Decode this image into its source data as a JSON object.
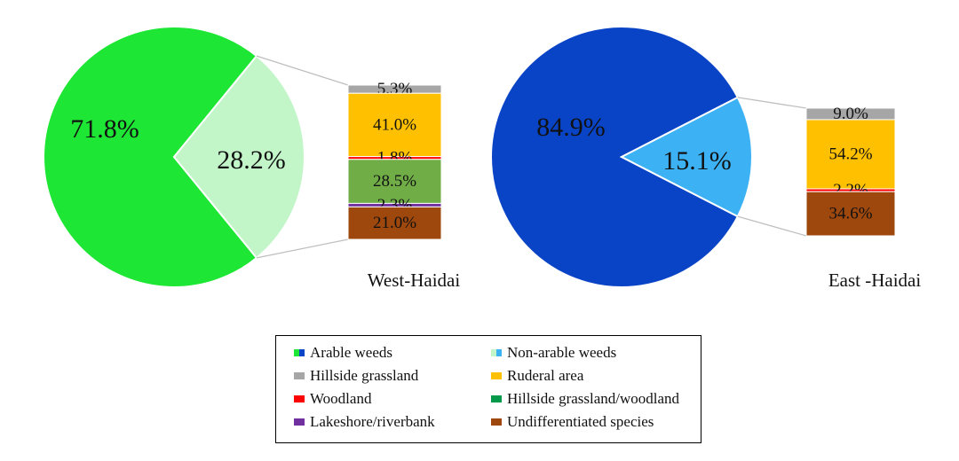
{
  "chart_data": [
    {
      "type": "pie",
      "name": "West-Haidai",
      "caption": "West-Haidai",
      "slices": [
        {
          "label": "71.8%",
          "value": 71.8,
          "category": "Arable weeds",
          "color": "#1ee634"
        },
        {
          "label": "28.2%",
          "value": 28.2,
          "category": "Non-arable weeds",
          "color": "#c2f5c8"
        }
      ],
      "breakdown": [
        {
          "label": "5.3%",
          "value": 5.3,
          "category": "Hillside grassland",
          "color": "#a6a6a6"
        },
        {
          "label": "41.0%",
          "value": 41.0,
          "category": "Ruderal area",
          "color": "#ffc000"
        },
        {
          "label": "1.8%",
          "value": 1.8,
          "category": "Woodland",
          "color": "#ff0000"
        },
        {
          "label": "28.5%",
          "value": 28.5,
          "category": "Hillside grassland/woodland",
          "color": "#70ad47"
        },
        {
          "label": "2.3%",
          "value": 2.3,
          "category": "Lakeshore/riverbank",
          "color": "#7030a0"
        },
        {
          "label": "21.0%",
          "value": 21.0,
          "category": "Undifferentiated species",
          "color": "#9e480e"
        }
      ]
    },
    {
      "type": "pie",
      "name": "East -Haidai",
      "caption": "East -Haidai",
      "slices": [
        {
          "label": "84.9%",
          "value": 84.9,
          "category": "Arable weeds",
          "color": "#0a44c6"
        },
        {
          "label": "15.1%",
          "value": 15.1,
          "category": "Non-arable weeds",
          "color": "#3cb2f5"
        }
      ],
      "breakdown": [
        {
          "label": "9.0%",
          "value": 9.0,
          "category": "Hillside grassland",
          "color": "#a6a6a6"
        },
        {
          "label": "54.2%",
          "value": 54.2,
          "category": "Ruderal area",
          "color": "#ffc000"
        },
        {
          "label": "2.2%",
          "value": 2.2,
          "category": "Woodland",
          "color": "#ff0000"
        },
        {
          "label": "34.6%",
          "value": 34.6,
          "category": "Undifferentiated species",
          "color": "#9e480e"
        }
      ]
    }
  ],
  "legend": {
    "items": [
      {
        "label": "Arable weeds",
        "colors": [
          "#1ee634",
          "#0a44c6"
        ]
      },
      {
        "label": "Non-arable weeds",
        "colors": [
          "#c2f5c8",
          "#3cb2f5"
        ]
      },
      {
        "label": "Hillside grassland",
        "colors": [
          "#a6a6a6"
        ]
      },
      {
        "label": "Ruderal area",
        "colors": [
          "#ffc000"
        ]
      },
      {
        "label": "Woodland",
        "colors": [
          "#ff0000"
        ]
      },
      {
        "label": "Hillside grassland/woodland",
        "colors": [
          "#00994c"
        ]
      },
      {
        "label": "Lakeshore/riverbank",
        "colors": [
          "#7030a0"
        ]
      },
      {
        "label": "Undifferentiated species",
        "colors": [
          "#9e480e"
        ]
      }
    ]
  }
}
